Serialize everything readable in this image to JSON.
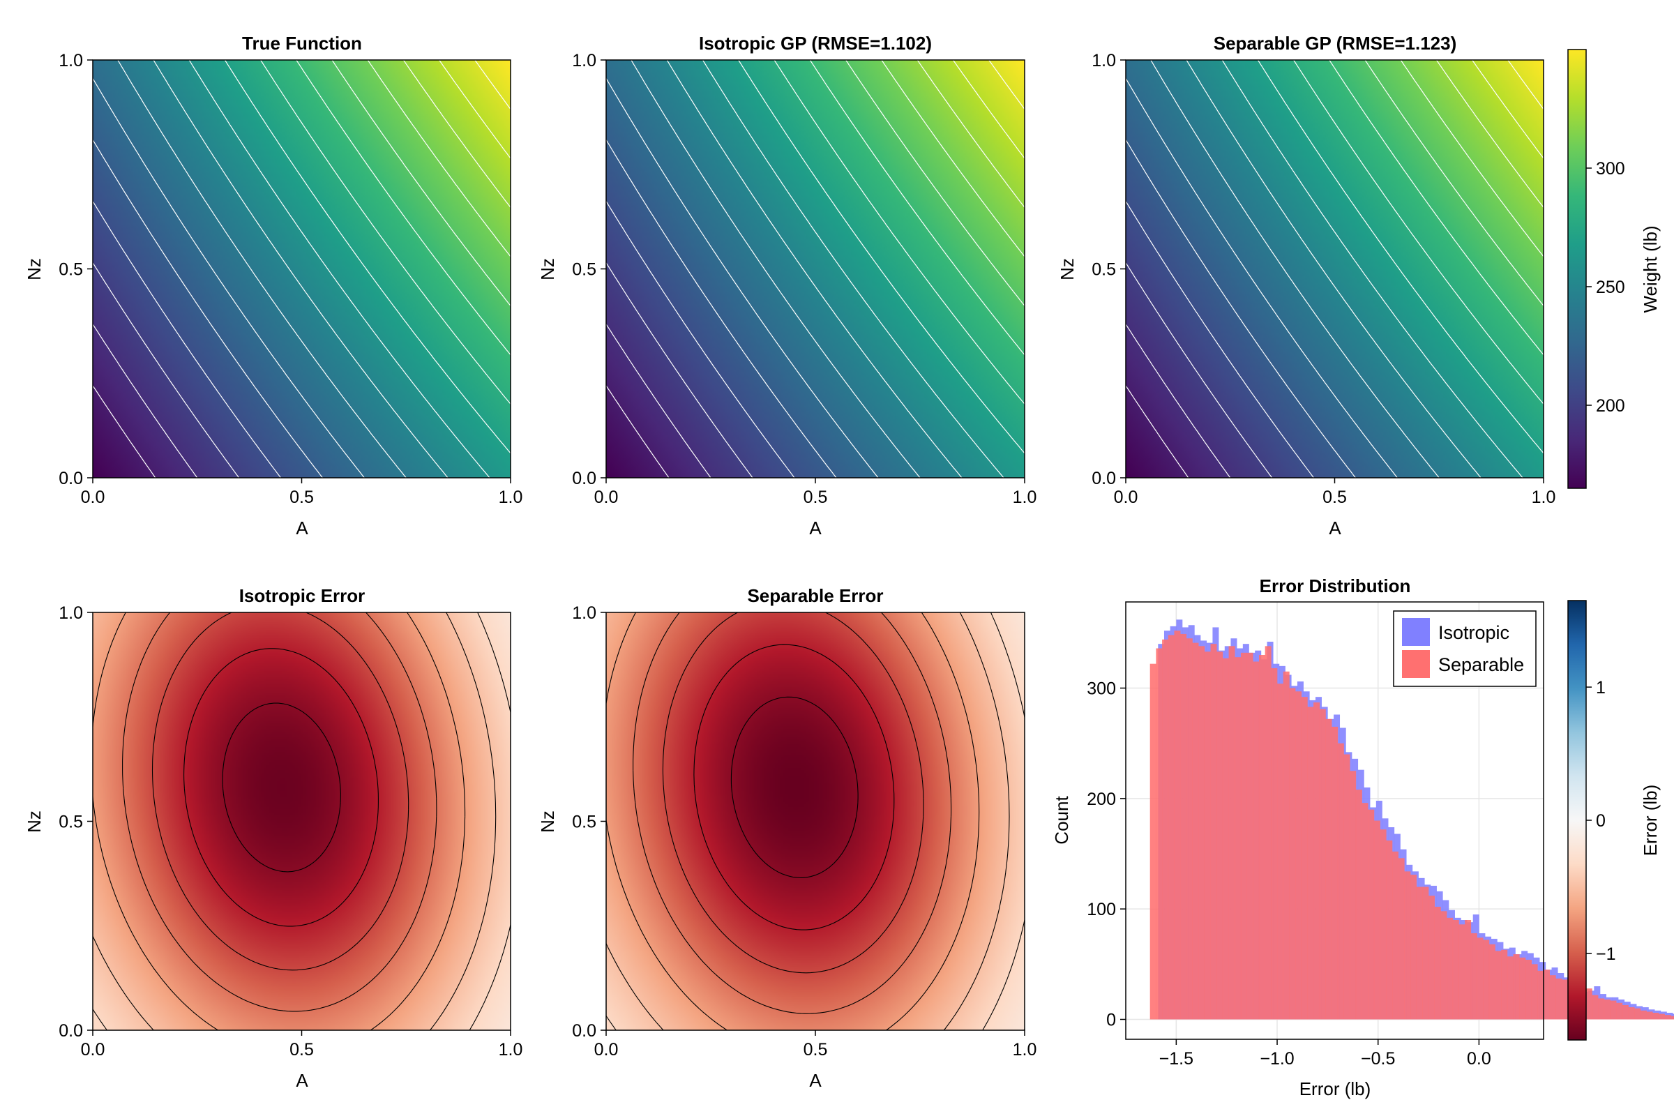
{
  "chart_data": [
    {
      "id": "true_function",
      "type": "heatmap",
      "title": "True Function",
      "xlabel": "A",
      "ylabel": "Nz",
      "xlim": [
        0,
        1
      ],
      "ylim": [
        0,
        1
      ],
      "xticks": [
        "0.0",
        "0.5",
        "1.0"
      ],
      "yticks": [
        "0.0",
        "0.5",
        "1.0"
      ],
      "colormap": "viridis",
      "z_range_lb": [
        165,
        350
      ],
      "contour_lines": "white"
    },
    {
      "id": "isotropic_gp",
      "type": "heatmap",
      "title": "Isotropic GP (RMSE=1.102)",
      "rmse": 1.102,
      "xlabel": "A",
      "ylabel": "Nz",
      "xlim": [
        0,
        1
      ],
      "ylim": [
        0,
        1
      ],
      "xticks": [
        "0.0",
        "0.5",
        "1.0"
      ],
      "yticks": [
        "0.0",
        "0.5",
        "1.0"
      ],
      "colormap": "viridis",
      "z_range_lb": [
        165,
        350
      ],
      "contour_lines": "white"
    },
    {
      "id": "separable_gp",
      "type": "heatmap",
      "title": "Separable GP (RMSE=1.123)",
      "rmse": 1.123,
      "xlabel": "A",
      "ylabel": "Nz",
      "xlim": [
        0,
        1
      ],
      "ylim": [
        0,
        1
      ],
      "xticks": [
        "0.0",
        "0.5",
        "1.0"
      ],
      "yticks": [
        "0.0",
        "0.5",
        "1.0"
      ],
      "colormap": "viridis",
      "z_range_lb": [
        165,
        350
      ],
      "contour_lines": "white"
    },
    {
      "id": "weight_colorbar",
      "type": "colorbar",
      "label": "Weight (lb)",
      "colormap": "viridis",
      "range": [
        165,
        350
      ],
      "ticks": [
        200,
        250,
        300
      ],
      "tick_labels": [
        "200",
        "250",
        "300"
      ]
    },
    {
      "id": "isotropic_error",
      "type": "heatmap",
      "title": "Isotropic Error",
      "xlabel": "A",
      "ylabel": "Nz",
      "xlim": [
        0,
        1
      ],
      "ylim": [
        0,
        1
      ],
      "xticks": [
        "0.0",
        "0.5",
        "1.0"
      ],
      "yticks": [
        "0.0",
        "0.5",
        "1.0"
      ],
      "colormap": "RdBu",
      "z_range_lb": [
        -1.65,
        1.65
      ],
      "min_error_location": [
        0.46,
        0.58
      ],
      "min_error_lb": -1.63,
      "contour_lines": "black"
    },
    {
      "id": "separable_error",
      "type": "heatmap",
      "title": "Separable Error",
      "xlabel": "A",
      "ylabel": "Nz",
      "xlim": [
        0,
        1
      ],
      "ylim": [
        0,
        1
      ],
      "xticks": [
        "0.0",
        "0.5",
        "1.0"
      ],
      "yticks": [
        "0.0",
        "0.5",
        "1.0"
      ],
      "colormap": "RdBu",
      "z_range_lb": [
        -1.65,
        1.65
      ],
      "min_error_location": [
        0.46,
        0.58
      ],
      "min_error_lb": -1.65,
      "contour_lines": "black"
    },
    {
      "id": "error_distribution",
      "type": "bar",
      "subtype": "histogram",
      "title": "Error Distribution",
      "xlabel": "Error (lb)",
      "ylabel": "Count",
      "xlim": [
        -1.75,
        0.32
      ],
      "ylim": [
        -18,
        378
      ],
      "xticks": [
        -1.5,
        -1.0,
        -0.5,
        0.0
      ],
      "xtick_labels": [
        "−1.5",
        "−1.0",
        "−0.5",
        "0.0"
      ],
      "yticks": [
        0,
        100,
        200,
        300
      ],
      "ytick_labels": [
        "0",
        "100",
        "200",
        "300"
      ],
      "grid": true,
      "legend_position": "top-right",
      "series": [
        {
          "name": "Isotropic",
          "color": "#8080ff",
          "start": -1.59,
          "bin_width": 0.03,
          "values": [
            340,
            352,
            356,
            362,
            355,
            357,
            348,
            343,
            341,
            355,
            334,
            338,
            345,
            336,
            340,
            332,
            334,
            326,
            342,
            322,
            320,
            312,
            302,
            306,
            297,
            289,
            292,
            283,
            272,
            276,
            264,
            242,
            236,
            226,
            210,
            192,
            198,
            182,
            174,
            168,
            154,
            140,
            134,
            128,
            122,
            121,
            116,
            108,
            99,
            92,
            90,
            88,
            95,
            78,
            75,
            73,
            70,
            64,
            65,
            59,
            62,
            60,
            56,
            52,
            45,
            47,
            42,
            38,
            38,
            33,
            25,
            26,
            30,
            23,
            20,
            20,
            18,
            16,
            14,
            12,
            11,
            9,
            8,
            7,
            6,
            5,
            5,
            3,
            2,
            1,
            1,
            0
          ]
        },
        {
          "name": "Separable",
          "color": "#ff7070",
          "start": -1.63,
          "bin_width": 0.03,
          "values": [
            322,
            336,
            344,
            348,
            352,
            349,
            345,
            341,
            338,
            333,
            340,
            333,
            327,
            338,
            328,
            332,
            332,
            324,
            330,
            338,
            318,
            304,
            315,
            300,
            297,
            292,
            283,
            287,
            281,
            272,
            265,
            250,
            240,
            225,
            208,
            196,
            190,
            180,
            172,
            162,
            152,
            146,
            134,
            131,
            120,
            120,
            112,
            102,
            98,
            92,
            90,
            86,
            90,
            78,
            74,
            72,
            68,
            62,
            63,
            57,
            59,
            56,
            54,
            50,
            44,
            45,
            40,
            37,
            36,
            32,
            25,
            25,
            28,
            22,
            19,
            18,
            17,
            15,
            13,
            11,
            10,
            8,
            7,
            6,
            5,
            4,
            3,
            2,
            1,
            1,
            0,
            0
          ]
        }
      ]
    },
    {
      "id": "error_colorbar",
      "type": "colorbar",
      "label": "Error (lb)",
      "colormap": "RdBu",
      "range": [
        -1.65,
        1.65
      ],
      "ticks": [
        -1,
        0,
        1
      ],
      "tick_labels": [
        "−1",
        "0",
        "1"
      ]
    }
  ]
}
